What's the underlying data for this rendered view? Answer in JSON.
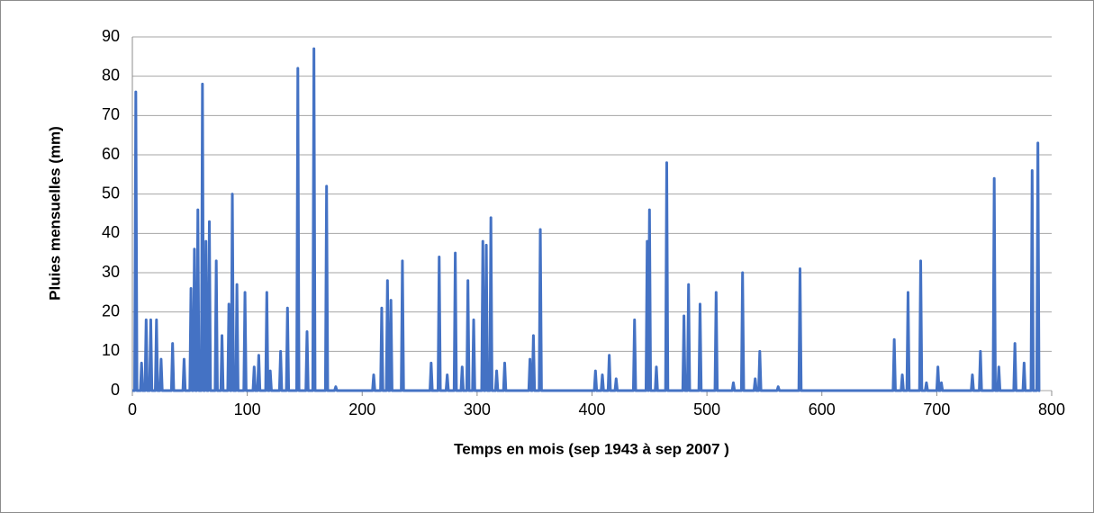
{
  "chart_data": {
    "type": "line",
    "xlabel": "Temps en mois (sep 1943 à sep 2007 )",
    "ylabel": "Pluies mensuelles (mm)",
    "xlim": [
      0,
      800
    ],
    "xticks": [
      0,
      100,
      200,
      300,
      400,
      500,
      600,
      700,
      800
    ],
    "ylim": [
      0,
      90
    ],
    "yticks": [
      0,
      10,
      20,
      30,
      40,
      50,
      60,
      70,
      80,
      90
    ],
    "grid": true,
    "series": [
      {
        "color": "#4472c4",
        "x": [
          0,
          2,
          3,
          4,
          7,
          8,
          9,
          11,
          12,
          13,
          15,
          16,
          17,
          20,
          21,
          22,
          24,
          25,
          26,
          34,
          35,
          36,
          44,
          45,
          46,
          50,
          51,
          52,
          53,
          54,
          55,
          56,
          57,
          58,
          60,
          61,
          62,
          63,
          64,
          65,
          66,
          67,
          68,
          72,
          73,
          74,
          77,
          78,
          79,
          83,
          84,
          85,
          86,
          87,
          88,
          90,
          91,
          92,
          97,
          98,
          99,
          105,
          106,
          107,
          109,
          110,
          111,
          116,
          117,
          118,
          119,
          120,
          121,
          128,
          129,
          130,
          134,
          135,
          136,
          143,
          144,
          145,
          151,
          152,
          153,
          157,
          158,
          159,
          168,
          169,
          170,
          176,
          177,
          178,
          209,
          210,
          211,
          216,
          217,
          218,
          221,
          222,
          223,
          224,
          225,
          226,
          234,
          235,
          236,
          259,
          260,
          261,
          266,
          267,
          268,
          273,
          274,
          275,
          280,
          281,
          282,
          286,
          287,
          288,
          291,
          292,
          293,
          296,
          297,
          298,
          304,
          305,
          306,
          307,
          308,
          309,
          311,
          312,
          313,
          316,
          317,
          318,
          323,
          324,
          325,
          345,
          346,
          347,
          348,
          349,
          350,
          354,
          355,
          356,
          402,
          403,
          404,
          408,
          409,
          410,
          414,
          415,
          416,
          420,
          421,
          422,
          436,
          437,
          438,
          447,
          448,
          449,
          450,
          451,
          455,
          456,
          457,
          464,
          465,
          466,
          479,
          480,
          481,
          483,
          484,
          485,
          493,
          494,
          495,
          507,
          508,
          509,
          522,
          523,
          524,
          530,
          531,
          532,
          541,
          542,
          543,
          545,
          546,
          547,
          561,
          562,
          563,
          580,
          581,
          582,
          662,
          663,
          664,
          669,
          670,
          671,
          674,
          675,
          676,
          685,
          686,
          687,
          690,
          691,
          692,
          700,
          701,
          702,
          703,
          704,
          705,
          730,
          731,
          732,
          737,
          738,
          739,
          749,
          750,
          751,
          753,
          754,
          755,
          767,
          768,
          769,
          775,
          776,
          777,
          782,
          783,
          784,
          787,
          788,
          789,
          790
        ],
        "values": [
          0,
          0,
          76,
          0,
          0,
          7,
          0,
          0,
          18,
          0,
          0,
          18,
          0,
          0,
          18,
          0,
          0,
          8,
          0,
          0,
          12,
          0,
          0,
          8,
          0,
          0,
          26,
          0,
          0,
          36,
          0,
          0,
          46,
          0,
          0,
          78,
          0,
          0,
          38,
          0,
          0,
          43,
          0,
          0,
          33,
          0,
          0,
          14,
          0,
          0,
          22,
          0,
          0,
          50,
          0,
          0,
          27,
          0,
          0,
          25,
          0,
          0,
          6,
          0,
          0,
          9,
          0,
          0,
          25,
          0,
          0,
          5,
          0,
          0,
          10,
          0,
          0,
          21,
          0,
          0,
          82,
          0,
          0,
          15,
          0,
          0,
          87,
          0,
          0,
          52,
          0,
          0,
          1,
          0,
          0,
          4,
          0,
          0,
          21,
          0,
          0,
          28,
          0,
          0,
          23,
          0,
          0,
          33,
          0,
          0,
          7,
          0,
          0,
          34,
          0,
          0,
          4,
          0,
          0,
          35,
          0,
          0,
          6,
          0,
          0,
          28,
          0,
          0,
          18,
          0,
          0,
          38,
          0,
          0,
          37,
          0,
          0,
          44,
          0,
          0,
          5,
          0,
          0,
          7,
          0,
          0,
          8,
          0,
          0,
          14,
          0,
          0,
          41,
          0,
          0,
          5,
          0,
          0,
          4,
          0,
          0,
          9,
          0,
          0,
          3,
          0,
          0,
          18,
          0,
          0,
          38,
          0,
          46,
          0,
          0,
          6,
          0,
          0,
          58,
          0,
          0,
          19,
          0,
          0,
          27,
          0,
          0,
          22,
          0,
          0,
          25,
          0,
          0,
          2,
          0,
          0,
          30,
          0,
          0,
          3,
          0,
          0,
          10,
          0,
          0,
          1,
          0,
          0,
          31,
          0,
          0,
          13,
          0,
          0,
          4,
          0,
          0,
          25,
          0,
          0,
          33,
          0,
          0,
          2,
          0,
          0,
          6,
          0,
          0,
          2,
          0,
          0,
          4,
          0,
          0,
          10,
          0,
          0,
          54,
          0,
          0,
          6,
          0,
          0,
          12,
          0,
          0,
          7,
          0,
          0,
          56,
          0,
          0,
          63,
          0,
          0
        ]
      }
    ]
  }
}
